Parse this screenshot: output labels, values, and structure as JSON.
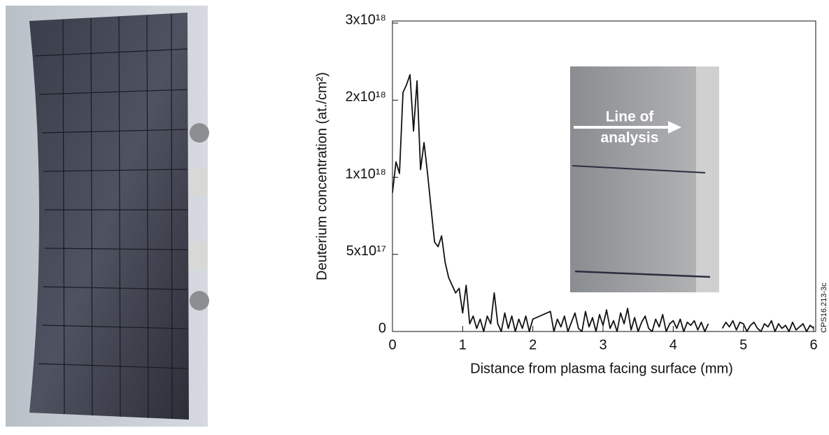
{
  "chart_data": {
    "type": "line",
    "x_label": "Distance from plasma facing surface (mm)",
    "y_label": "Deuterium concentration (at./cm²)",
    "inset_label": [
      "Line of",
      "analysis"
    ],
    "side_note": "CPS16.213-3c",
    "xlim": [
      0,
      6
    ],
    "xticks": [
      0,
      1,
      2,
      3,
      4,
      5,
      6
    ],
    "ylim": [
      0,
      3e+18
    ],
    "yticks": [
      0,
      {
        "value": 5e+17,
        "label": "5x10¹⁷"
      },
      {
        "value": 1e+18,
        "label": "1x10¹⁸"
      },
      {
        "value": 2e+18,
        "label": "2x10¹⁸"
      },
      {
        "value": 3e+18,
        "label": "3x10¹⁸"
      }
    ],
    "color": "#111111",
    "x": [
      0,
      0.05,
      0.1,
      0.15,
      0.2,
      0.25,
      0.3,
      0.35,
      0.4,
      0.45,
      0.5,
      0.55,
      0.6,
      0.65,
      0.7,
      0.75,
      0.8,
      0.85,
      0.9,
      0.95,
      1.0,
      1.05,
      1.1,
      1.15,
      1.2,
      1.25,
      1.3,
      1.35,
      1.4,
      1.45,
      1.5,
      1.55,
      1.6,
      1.65,
      1.7,
      1.75,
      1.8,
      1.85,
      1.9,
      1.95,
      2.0,
      2.25,
      2.3,
      2.35,
      2.4,
      2.45,
      2.5,
      2.55,
      2.6,
      2.65,
      2.7,
      2.75,
      2.8,
      2.85,
      2.9,
      2.95,
      3.0,
      3.05,
      3.1,
      3.15,
      3.2,
      3.25,
      3.3,
      3.35,
      3.4,
      3.45,
      3.5,
      3.55,
      3.6,
      3.65,
      3.7,
      3.75,
      3.8,
      3.85,
      3.9,
      3.95,
      4.0,
      4.05,
      4.1,
      4.15,
      4.2,
      4.25,
      4.3,
      4.35,
      4.4,
      4.45,
      4.5,
      4.6,
      4.7,
      4.75,
      4.8,
      4.85,
      4.9,
      4.95,
      5.0,
      5.05,
      5.1,
      5.15,
      5.2,
      5.25,
      5.3,
      5.35,
      5.4,
      5.45,
      5.5,
      5.55,
      5.6,
      5.65,
      5.7,
      5.75,
      5.8,
      5.85,
      5.9,
      5.95,
      6.0
    ],
    "values": [
      9e+17,
      1.2e+18,
      1.05e+18,
      2.1e+18,
      2.2e+18,
      2.33e+18,
      1.6e+18,
      2.25e+18,
      1.1e+18,
      1.45e+18,
      1.05e+18,
      8e+17,
      5.8e+17,
      5.5e+17,
      6.2e+17,
      4.5e+17,
      3.5e+17,
      3e+17,
      2.5e+17,
      2.8e+17,
      1.2e+17,
      3e+17,
      5e+16,
      1e+17,
      2e+16,
      8e+16,
      0,
      1e+17,
      5e+16,
      2.5e+17,
      5e+16,
      0,
      1.2e+17,
      2e+16,
      1e+17,
      0,
      8e+16,
      2e+16,
      1e+17,
      0,
      8e+16,
      1.3e+17,
      0,
      8e+16,
      3e+16,
      1e+17,
      0,
      6e+16,
      1.2e+17,
      2e+16,
      0,
      1.3e+17,
      3e+16,
      9e+16,
      0,
      1.1e+17,
      4e+16,
      1.4e+17,
      2e+16,
      7e+16,
      0,
      1.2e+17,
      5e+16,
      1.5e+17,
      1e+16,
      9e+16,
      0,
      6e+16,
      1e+17,
      2e+16,
      0,
      8e+16,
      3e+16,
      1.1e+17,
      0,
      5e+16,
      7e+16,
      2e+16,
      8e+16,
      0,
      6e+16,
      4e+16,
      7e+16,
      1e+16,
      6e+16,
      0,
      5e+16,
      null,
      2e+16,
      6e+16,
      3e+16,
      7e+16,
      1e+16,
      6e+16,
      5e+16,
      0,
      4e+16,
      6e+16,
      2e+16,
      0,
      5e+16,
      3e+16,
      7e+16,
      0,
      5e+16,
      2e+16,
      4e+16,
      0,
      6e+16,
      1e+16,
      3e+16,
      5e+16,
      0,
      4e+16,
      2e+16
    ]
  }
}
